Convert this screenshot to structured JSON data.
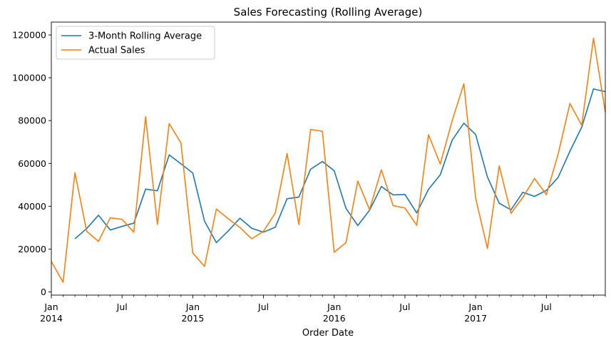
{
  "chart_data": {
    "type": "line",
    "title": "Sales Forecasting (Rolling Average)",
    "xlabel": "Order Date",
    "ylabel": "",
    "ylim": [
      -1500,
      126000
    ],
    "xlim": [
      "2014-01",
      "2017-12"
    ],
    "grid": false,
    "legend_position": "top-left",
    "yticks": [
      0,
      20000,
      40000,
      60000,
      80000,
      100000,
      120000
    ],
    "ytick_labels": [
      "0",
      "20000",
      "40000",
      "60000",
      "80000",
      "100000",
      "120000"
    ],
    "xticks": [
      {
        "month": "2014-01",
        "label": "Jan",
        "sublabel": "2014"
      },
      {
        "month": "2014-07",
        "label": "Jul",
        "sublabel": ""
      },
      {
        "month": "2015-01",
        "label": "Jan",
        "sublabel": "2015"
      },
      {
        "month": "2015-07",
        "label": "Jul",
        "sublabel": ""
      },
      {
        "month": "2016-01",
        "label": "Jan",
        "sublabel": "2016"
      },
      {
        "month": "2016-07",
        "label": "Jul",
        "sublabel": ""
      },
      {
        "month": "2017-01",
        "label": "Jan",
        "sublabel": "2017"
      },
      {
        "month": "2017-07",
        "label": "Jul",
        "sublabel": ""
      }
    ],
    "x": [
      "2014-01",
      "2014-02",
      "2014-03",
      "2014-04",
      "2014-05",
      "2014-06",
      "2014-07",
      "2014-08",
      "2014-09",
      "2014-10",
      "2014-11",
      "2014-12",
      "2015-01",
      "2015-02",
      "2015-03",
      "2015-04",
      "2015-05",
      "2015-06",
      "2015-07",
      "2015-08",
      "2015-09",
      "2015-10",
      "2015-11",
      "2015-12",
      "2016-01",
      "2016-02",
      "2016-03",
      "2016-04",
      "2016-05",
      "2016-06",
      "2016-07",
      "2016-08",
      "2016-09",
      "2016-10",
      "2016-11",
      "2016-12",
      "2017-01",
      "2017-02",
      "2017-03",
      "2017-04",
      "2017-05",
      "2017-06",
      "2017-07",
      "2017-08",
      "2017-09",
      "2017-10",
      "2017-11",
      "2017-12"
    ],
    "series": [
      {
        "name": "3-Month Rolling Average",
        "color": "#1f77b4",
        "values": [
          null,
          null,
          24800,
          29600,
          35800,
          28900,
          30600,
          32100,
          48000,
          47200,
          64000,
          59800,
          55500,
          33000,
          23000,
          28400,
          34400,
          29700,
          27900,
          30200,
          43500,
          44300,
          57300,
          60900,
          56600,
          39000,
          31000,
          38100,
          49200,
          45300,
          45500,
          36900,
          47900,
          54700,
          70800,
          78800,
          73500,
          53700,
          41400,
          38300,
          46500,
          44600,
          47400,
          53500,
          65700,
          76900,
          94800,
          93500
        ]
      },
      {
        "name": "Actual Sales",
        "color": "#ff7f0e",
        "values": [
          14200,
          4500,
          55700,
          28300,
          23600,
          34600,
          33900,
          27900,
          81800,
          31500,
          78600,
          69500,
          18200,
          11900,
          38700,
          34200,
          30100,
          24800,
          28300,
          36800,
          64600,
          31500,
          75900,
          75000,
          18500,
          23000,
          51800,
          38400,
          57000,
          40300,
          39200,
          31100,
          73400,
          59700,
          79800,
          97200,
          43800,
          20300,
          58900,
          36700,
          44100,
          53000,
          45400,
          64400,
          88000,
          77800,
          118500,
          84000
        ]
      }
    ]
  }
}
